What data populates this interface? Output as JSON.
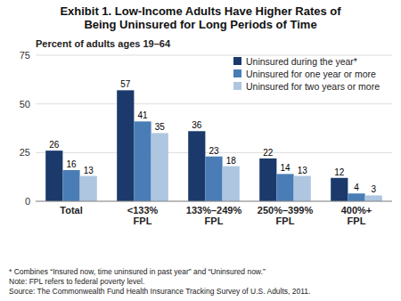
{
  "chart_data": {
    "type": "bar",
    "title": "Exhibit 1. Low-Income Adults Have Higher Rates of\nBeing Uninsured for Long Periods of Time",
    "subtitle": "Percent of adults ages 19–64",
    "categories": [
      "Total",
      "<133%\nFPL",
      "133%–249%\nFPL",
      "250%–399%\nFPL",
      "400%+\nFPL"
    ],
    "series": [
      {
        "name": "Uninsured during the year*",
        "color": "#1b3a6b",
        "values": [
          26,
          57,
          36,
          22,
          12
        ]
      },
      {
        "name": "Uninsured for one year or more",
        "color": "#4a7db5",
        "values": [
          16,
          41,
          23,
          14,
          4
        ]
      },
      {
        "name": "Uninsured for two years or more",
        "color": "#aec6e0",
        "values": [
          13,
          35,
          18,
          13,
          3
        ]
      }
    ],
    "ylim": [
      0,
      75
    ],
    "yticks": [
      0,
      25,
      50,
      75
    ],
    "grid": true,
    "legend": "upper right",
    "data_labels": true,
    "footnote": "* Combines “Insured now, time uninsured in past year” and “Uninsured now.”\nNote: FPL refers to federal poverty level.\nSource: The Commonwealth Fund Health Insurance Tracking Survey of U.S. Adults, 2011."
  }
}
